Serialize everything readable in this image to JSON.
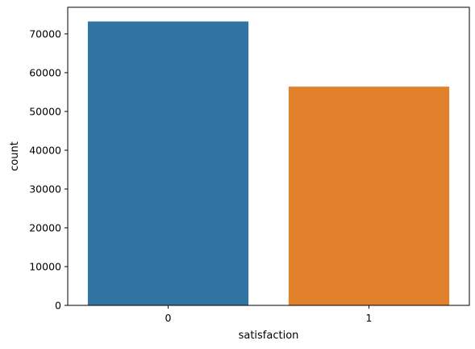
{
  "chart_data": {
    "type": "bar",
    "categories": [
      "0",
      "1"
    ],
    "values": [
      73200,
      56400
    ],
    "colors": [
      "#3274a1",
      "#e1812c"
    ],
    "xlabel": "satisfaction",
    "ylabel": "count",
    "ylim": [
      0,
      76860
    ],
    "yticks": [
      0,
      10000,
      20000,
      30000,
      40000,
      50000,
      60000,
      70000
    ],
    "grid": false,
    "legend": "none"
  }
}
